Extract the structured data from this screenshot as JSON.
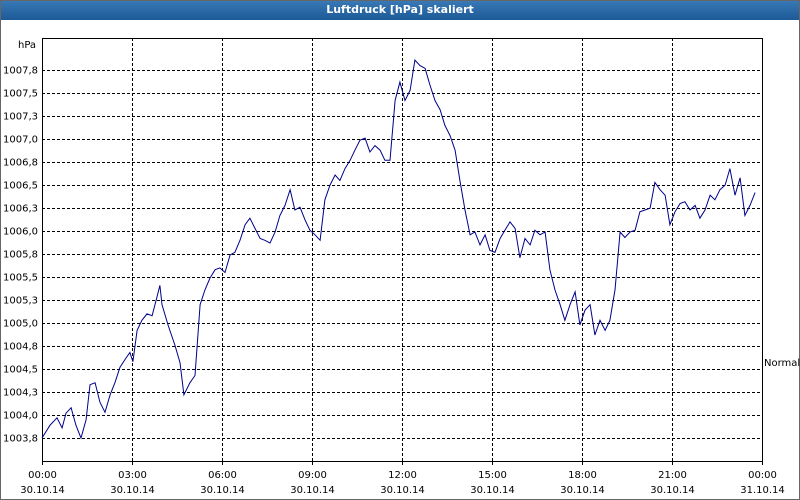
{
  "chart_data": {
    "type": "line",
    "title": "Luftdruck [hPa] skaliert",
    "y_label": "hPa",
    "x": [
      0,
      0.27,
      0.5,
      0.67,
      0.8,
      0.97,
      1.13,
      1.3,
      1.47,
      1.6,
      1.77,
      1.93,
      2.1,
      2.27,
      2.43,
      2.6,
      2.8,
      2.93,
      3.03,
      3.17,
      3.33,
      3.5,
      3.67,
      3.83,
      3.93,
      4.0,
      4.2,
      4.43,
      4.6,
      4.73,
      4.93,
      5.1,
      5.27,
      5.43,
      5.6,
      5.77,
      5.93,
      6.1,
      6.27,
      6.43,
      6.6,
      6.77,
      6.93,
      7.1,
      7.27,
      7.43,
      7.6,
      7.77,
      7.93,
      8.1,
      8.27,
      8.43,
      8.6,
      8.77,
      8.93,
      9.1,
      9.27,
      9.43,
      9.6,
      9.77,
      9.93,
      10.1,
      10.27,
      10.43,
      10.6,
      10.77,
      10.93,
      11.1,
      11.27,
      11.43,
      11.6,
      11.77,
      11.93,
      12.1,
      12.27,
      12.43,
      12.6,
      12.77,
      12.93,
      13.1,
      13.27,
      13.43,
      13.6,
      13.77,
      13.93,
      14.1,
      14.27,
      14.43,
      14.6,
      14.77,
      14.93,
      15.1,
      15.27,
      15.43,
      15.6,
      15.77,
      15.93,
      16.1,
      16.27,
      16.43,
      16.6,
      16.77,
      16.93,
      17.1,
      17.27,
      17.43,
      17.6,
      17.77,
      17.93,
      18.1,
      18.27,
      18.43,
      18.6,
      18.77,
      18.93,
      19.1,
      19.27,
      19.43,
      19.6,
      19.77,
      19.93,
      20.1,
      20.27,
      20.43,
      20.6,
      20.77,
      20.93,
      21.1,
      21.27,
      21.43,
      21.6,
      21.77,
      21.93,
      22.1,
      22.27,
      22.43,
      22.6,
      22.77,
      22.93,
      23.1,
      23.27,
      23.43,
      23.6,
      23.77
    ],
    "series": [
      {
        "name": "Normal",
        "color": "#00008b",
        "values": [
          1003.75,
          1003.89,
          1003.97,
          1003.86,
          1004.02,
          1004.08,
          1003.89,
          1003.75,
          1003.95,
          1004.33,
          1004.35,
          1004.14,
          1004.03,
          1004.22,
          1004.35,
          1004.52,
          1004.62,
          1004.68,
          1004.58,
          1004.92,
          1005.03,
          1005.1,
          1005.08,
          1005.28,
          1005.41,
          1005.2,
          1004.98,
          1004.76,
          1004.57,
          1004.22,
          1004.35,
          1004.43,
          1005.2,
          1005.36,
          1005.49,
          1005.58,
          1005.6,
          1005.55,
          1005.74,
          1005.77,
          1005.9,
          1006.07,
          1006.14,
          1006.03,
          1005.92,
          1005.9,
          1005.87,
          1005.99,
          1006.17,
          1006.28,
          1006.45,
          1006.23,
          1006.26,
          1006.12,
          1006.01,
          1005.96,
          1005.9,
          1006.34,
          1006.5,
          1006.61,
          1006.55,
          1006.68,
          1006.77,
          1006.88,
          1006.99,
          1007.01,
          1006.86,
          1006.93,
          1006.88,
          1006.77,
          1006.77,
          1007.42,
          1007.62,
          1007.42,
          1007.53,
          1007.86,
          1007.8,
          1007.77,
          1007.59,
          1007.42,
          1007.32,
          1007.15,
          1007.04,
          1006.88,
          1006.55,
          1006.23,
          1005.96,
          1005.99,
          1005.85,
          1005.96,
          1005.79,
          1005.77,
          1005.92,
          1006.01,
          1006.1,
          1006.03,
          1005.71,
          1005.92,
          1005.85,
          1006.01,
          1005.96,
          1005.99,
          1005.58,
          1005.36,
          1005.2,
          1005.03,
          1005.2,
          1005.34,
          1004.98,
          1005.14,
          1005.2,
          1004.87,
          1005.03,
          1004.92,
          1005.03,
          1005.36,
          1005.99,
          1005.93,
          1005.99,
          1006.01,
          1006.21,
          1006.23,
          1006.25,
          1006.53,
          1006.45,
          1006.39,
          1006.07,
          1006.21,
          1006.3,
          1006.32,
          1006.23,
          1006.28,
          1006.14,
          1006.23,
          1006.39,
          1006.34,
          1006.45,
          1006.5,
          1006.68,
          1006.39,
          1006.58,
          1006.17,
          1006.28,
          1006.42
        ]
      }
    ],
    "xlim": [
      0,
      24
    ],
    "xticks": [
      {
        "value": 0,
        "label": "00:00"
      },
      {
        "value": 3,
        "label": "03:00"
      },
      {
        "value": 6,
        "label": "06:00"
      },
      {
        "value": 9,
        "label": "09:00"
      },
      {
        "value": 12,
        "label": "12:00"
      },
      {
        "value": 15,
        "label": "15:00"
      },
      {
        "value": 18,
        "label": "18:00"
      },
      {
        "value": 21,
        "label": "21:00"
      },
      {
        "value": 24,
        "label": "00:00"
      }
    ],
    "xtick_dates": [
      "30.10.14",
      "30.10.14",
      "30.10.14",
      "30.10.14",
      "30.10.14",
      "30.10.14",
      "30.10.14",
      "30.10.14",
      "31.10.14"
    ],
    "ylim": [
      1003.5,
      1008.1
    ],
    "yticks": [
      {
        "value": 1003.75,
        "label": "1003,8"
      },
      {
        "value": 1004.0,
        "label": "1004,0"
      },
      {
        "value": 1004.25,
        "label": "1004,3"
      },
      {
        "value": 1004.5,
        "label": "1004,5"
      },
      {
        "value": 1004.75,
        "label": "1004,8"
      },
      {
        "value": 1005.0,
        "label": "1005,0"
      },
      {
        "value": 1005.25,
        "label": "1005,3"
      },
      {
        "value": 1005.5,
        "label": "1005,5"
      },
      {
        "value": 1005.75,
        "label": "1005,8"
      },
      {
        "value": 1006.0,
        "label": "1006,0"
      },
      {
        "value": 1006.25,
        "label": "1006,3"
      },
      {
        "value": 1006.5,
        "label": "1006,5"
      },
      {
        "value": 1006.75,
        "label": "1006,8"
      },
      {
        "value": 1007.0,
        "label": "1007,0"
      },
      {
        "value": 1007.25,
        "label": "1007,3"
      },
      {
        "value": 1007.5,
        "label": "1007,5"
      },
      {
        "value": 1007.75,
        "label": "1007,8"
      }
    ],
    "grid": true
  }
}
